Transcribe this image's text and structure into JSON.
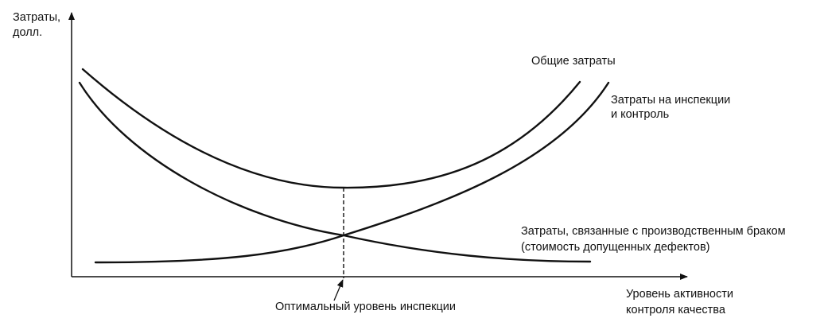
{
  "y_axis_label": [
    "Затраты,",
    "долл."
  ],
  "x_axis_label": [
    "Уровень активности",
    "контроля качества"
  ],
  "labels": {
    "total_costs": "Общие затраты",
    "inspection_costs": [
      "Затраты на инспекции",
      "и контроль"
    ],
    "defect_costs": [
      "Затраты, связанные с производственным браком",
      "(стоимость допущенных дефектов)"
    ],
    "optimal_level": "Оптимальный уровень инспекции"
  }
}
